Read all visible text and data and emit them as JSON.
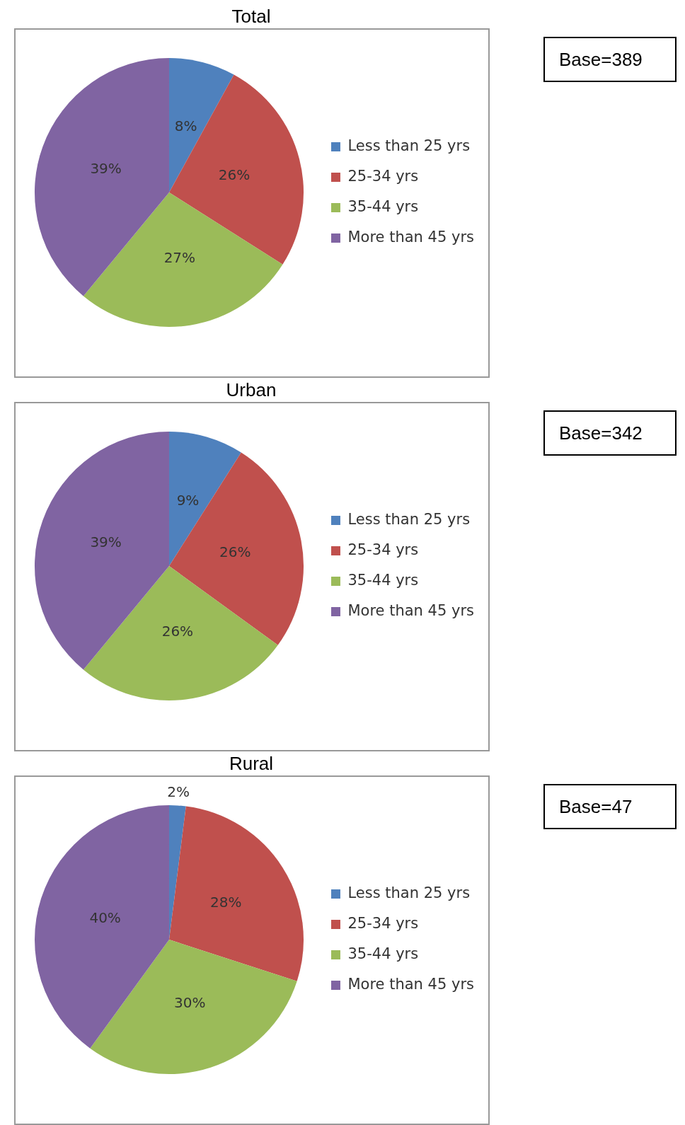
{
  "chart_data": [
    {
      "type": "pie",
      "title": "Total",
      "categories": [
        "Less than 25 yrs",
        "25-34 yrs",
        "35-44 yrs",
        "More than 45 yrs"
      ],
      "values": [
        8,
        26,
        27,
        39
      ],
      "value_labels": [
        "8%",
        "26%",
        "27%",
        "39%"
      ],
      "colors": [
        "#4f81bd",
        "#c0504d",
        "#9bbb59",
        "#8064a2"
      ],
      "legend": "right",
      "annotations": [
        "Base=389"
      ]
    },
    {
      "type": "pie",
      "title": "Urban",
      "categories": [
        "Less than 25 yrs",
        "25-34 yrs",
        "35-44 yrs",
        "More than 45 yrs"
      ],
      "values": [
        9,
        26,
        26,
        39
      ],
      "value_labels": [
        "9%",
        "26%",
        "26%",
        "39%"
      ],
      "colors": [
        "#4f81bd",
        "#c0504d",
        "#9bbb59",
        "#8064a2"
      ],
      "legend": "right",
      "annotations": [
        "Base=342"
      ]
    },
    {
      "type": "pie",
      "title": "Rural",
      "categories": [
        "Less than 25 yrs",
        "25-34 yrs",
        "35-44 yrs",
        "More than 45 yrs"
      ],
      "values": [
        2,
        28,
        30,
        40
      ],
      "value_labels": [
        "2%",
        "28%",
        "30%",
        "40%"
      ],
      "colors": [
        "#4f81bd",
        "#c0504d",
        "#9bbb59",
        "#8064a2"
      ],
      "legend": "right",
      "annotations": [
        "Base=47"
      ]
    }
  ]
}
